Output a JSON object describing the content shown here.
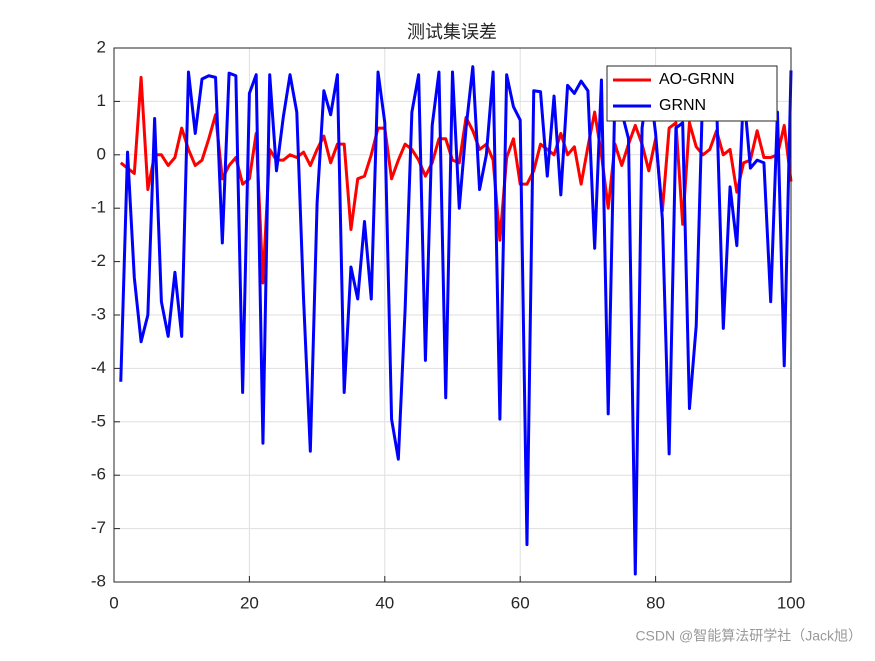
{
  "chart_data": {
    "type": "line",
    "title": "测试集误差",
    "x": [
      1,
      2,
      3,
      4,
      5,
      6,
      7,
      8,
      9,
      10,
      11,
      12,
      13,
      14,
      15,
      16,
      17,
      18,
      19,
      20,
      21,
      22,
      23,
      24,
      25,
      26,
      27,
      28,
      29,
      30,
      31,
      32,
      33,
      34,
      35,
      36,
      37,
      38,
      39,
      40,
      41,
      42,
      43,
      44,
      45,
      46,
      47,
      48,
      49,
      50,
      51,
      52,
      53,
      54,
      55,
      56,
      57,
      58,
      59,
      60,
      61,
      62,
      63,
      64,
      65,
      66,
      67,
      68,
      69,
      70,
      71,
      72,
      73,
      74,
      75,
      76,
      77,
      78,
      79,
      80,
      81,
      82,
      83,
      84,
      85,
      86,
      87,
      88,
      89,
      90,
      91,
      92,
      93,
      94,
      95,
      96,
      97,
      98,
      99,
      100
    ],
    "series": [
      {
        "name": "AO-GRNN",
        "color": "#ff0000",
        "values": [
          -0.15,
          -0.25,
          -0.35,
          1.45,
          -0.65,
          0.0,
          0.0,
          -0.2,
          -0.05,
          0.5,
          0.1,
          -0.2,
          -0.1,
          0.3,
          0.75,
          -0.45,
          -0.2,
          -0.05,
          -0.55,
          -0.45,
          0.4,
          -2.4,
          0.1,
          -0.1,
          -0.1,
          0.0,
          -0.05,
          0.05,
          -0.2,
          0.1,
          0.35,
          -0.15,
          0.2,
          0.2,
          -1.4,
          -0.45,
          -0.4,
          0.0,
          0.5,
          0.5,
          -0.45,
          -0.1,
          0.2,
          0.1,
          -0.1,
          -0.4,
          -0.15,
          0.3,
          0.3,
          -0.1,
          -0.15,
          0.7,
          0.45,
          0.1,
          0.2,
          -0.1,
          -1.6,
          -0.05,
          0.3,
          -0.55,
          -0.55,
          -0.3,
          0.2,
          0.1,
          0.0,
          0.4,
          0.0,
          0.15,
          -0.55,
          0.15,
          0.8,
          0.0,
          -1.0,
          0.2,
          -0.2,
          0.2,
          0.55,
          0.2,
          -0.3,
          0.3,
          -1.05,
          0.5,
          0.6,
          -1.3,
          0.6,
          0.15,
          0.0,
          0.1,
          0.45,
          0.0,
          0.1,
          -0.7,
          -0.15,
          -0.1,
          0.45,
          -0.05,
          -0.05,
          0.0,
          0.55,
          -0.5
        ]
      },
      {
        "name": "GRNN",
        "color": "#0000ff",
        "values": [
          -4.25,
          0.05,
          -2.3,
          -3.5,
          -3.0,
          0.68,
          -2.75,
          -3.4,
          -2.2,
          -3.4,
          1.55,
          0.4,
          1.42,
          1.48,
          1.45,
          -1.65,
          1.53,
          1.48,
          -4.45,
          1.15,
          1.5,
          -5.4,
          1.5,
          -0.3,
          0.7,
          1.5,
          0.8,
          -2.7,
          -5.55,
          -0.9,
          1.2,
          0.75,
          1.5,
          -4.45,
          -2.1,
          -2.7,
          -1.25,
          -2.7,
          1.55,
          0.6,
          -4.95,
          -5.7,
          -2.9,
          0.8,
          1.5,
          -3.85,
          0.55,
          1.55,
          -4.55,
          1.55,
          -1.0,
          0.5,
          1.65,
          -0.65,
          0.0,
          1.55,
          -4.95,
          1.5,
          0.9,
          0.65,
          -7.3,
          1.2,
          1.18,
          -0.4,
          1.1,
          -0.75,
          1.3,
          1.15,
          1.38,
          1.2,
          -1.75,
          1.4,
          -4.85,
          1.2,
          0.8,
          0.3,
          -7.85,
          0.5,
          1.45,
          0.4,
          -1.2,
          -5.6,
          0.5,
          0.6,
          -4.75,
          -3.2,
          1.4,
          0.8,
          1.0,
          -3.25,
          -0.6,
          -1.7,
          1.2,
          -0.25,
          -0.1,
          -0.15,
          -2.75,
          0.8,
          -3.95,
          1.58
        ]
      }
    ],
    "xlim": [
      0,
      100
    ],
    "xticks": [
      0,
      20,
      40,
      60,
      80,
      100
    ],
    "ylim": [
      -8,
      2
    ],
    "yticks": [
      -8,
      -7,
      -6,
      -5,
      -4,
      -3,
      -2,
      -1,
      0,
      1,
      2
    ],
    "grid": true,
    "legend": "northeast",
    "watermark": "CSDN @智能算法研学社（Jack旭）"
  }
}
